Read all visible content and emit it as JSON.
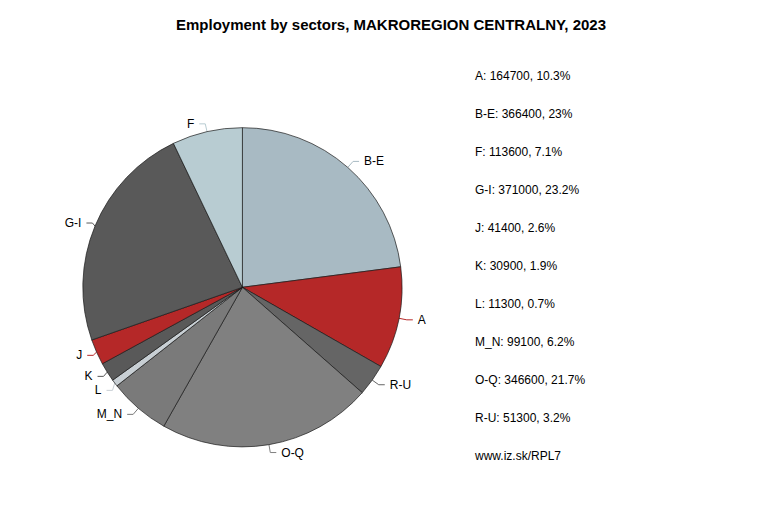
{
  "chart_data": {
    "type": "pie",
    "title": "Employment by sectors, MAKROREGION CENTRALNY, 2023",
    "categories": [
      "B-E",
      "A",
      "R-U",
      "O-Q",
      "M_N",
      "L",
      "K",
      "J",
      "G-I",
      "F"
    ],
    "values": [
      366400,
      164700,
      51300,
      346600,
      99100,
      11300,
      30900,
      41400,
      371000,
      113600
    ],
    "colors": [
      "#a8bac3",
      "#b52828",
      "#656565",
      "#808080",
      "#7a7a7a",
      "#c8cfd4",
      "#595959",
      "#b52828",
      "#595959",
      "#b8ccd2"
    ],
    "annotations": [
      "A: 164700, 10.3%",
      "B-E: 366400, 23%",
      "F: 113600, 7.1%",
      "G-I: 371000, 23.2%",
      "J: 41400, 2.6%",
      "K: 30900, 1.9%",
      "L: 11300, 0.7%",
      "M_N: 99100, 6.2%",
      "O-Q: 346600, 21.7%",
      "R-U: 51300, 3.2%",
      "www.iz.sk/RPL7"
    ]
  }
}
